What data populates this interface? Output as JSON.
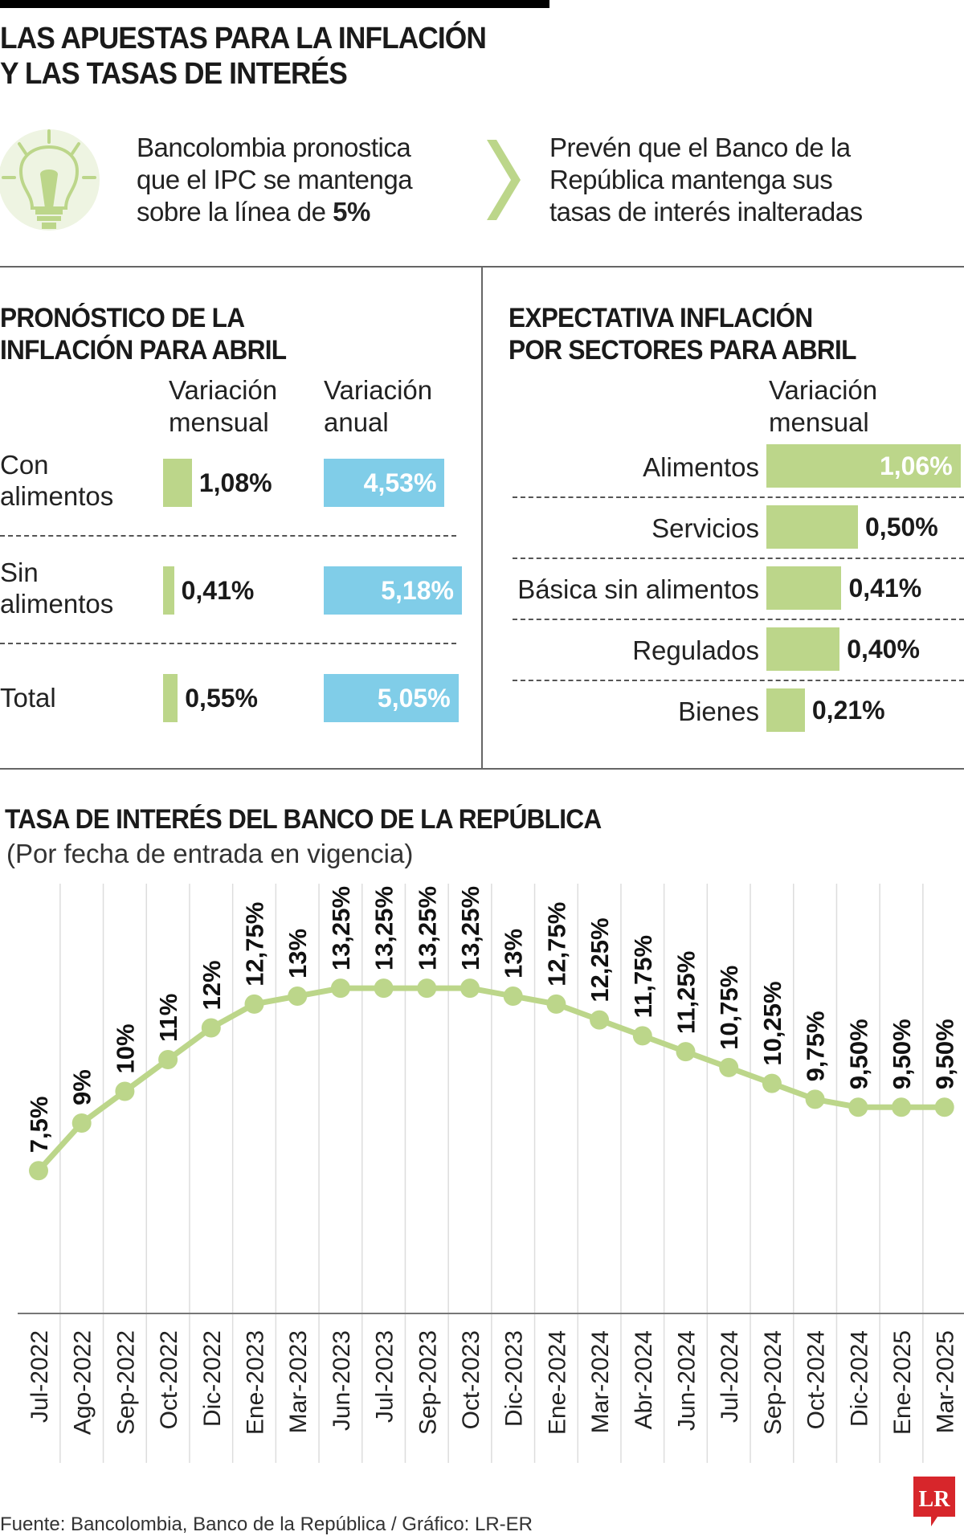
{
  "title": [
    "LAS APUESTAS PARA LA INFLACIÓN",
    "Y LAS TASAS DE INTERÉS"
  ],
  "intro": {
    "left_lines": [
      "Bancolombia pronostica",
      "que el IPC se mantenga",
      "sobre la línea de "
    ],
    "left_bold": "5%",
    "right_lines": [
      "Prevén que el Banco de la",
      "República mantenga sus",
      "tasas de interés inalteradas"
    ],
    "icon": "lightbulb-icon",
    "arrow_icon": "chevron-right-icon"
  },
  "forecast": {
    "title": [
      "PRONÓSTICO DE LA",
      "INFLACIÓN PARA ABRIL"
    ],
    "col_monthly": [
      "Variación",
      "mensual"
    ],
    "col_annual": [
      "Variación",
      "anual"
    ],
    "rows": [
      {
        "label": [
          "Con",
          "alimentos"
        ],
        "monthly": 1.08,
        "monthly_label": "1,08%",
        "annual": 4.53,
        "annual_label": "4,53%"
      },
      {
        "label": [
          "Sin",
          "alimentos"
        ],
        "monthly": 0.41,
        "monthly_label": "0,41%",
        "annual": 5.18,
        "annual_label": "5,18%"
      },
      {
        "label": [
          "Total"
        ],
        "monthly": 0.55,
        "monthly_label": "0,55%",
        "annual": 5.05,
        "annual_label": "5,05%"
      }
    ]
  },
  "sectors": {
    "title": [
      "EXPECTATIVA INFLACIÓN",
      "POR SECTORES PARA ABRIL"
    ],
    "col_monthly": [
      "Variación",
      "mensual"
    ],
    "rows": [
      {
        "label": "Alimentos",
        "value": 1.06,
        "value_label": "1,06%"
      },
      {
        "label": "Servicios",
        "value": 0.5,
        "value_label": "0,50%"
      },
      {
        "label": "Básica sin alimentos",
        "value": 0.41,
        "value_label": "0,41%"
      },
      {
        "label": "Regulados",
        "value": 0.4,
        "value_label": "0,40%"
      },
      {
        "label": "Bienes",
        "value": 0.21,
        "value_label": "0,21%"
      }
    ]
  },
  "colors": {
    "green": "#bcd68a",
    "blue": "#80cde8",
    "logo_red": "#d7262b"
  },
  "chart_data": {
    "type": "line",
    "title": "TASA DE INTERÉS DEL BANCO DE LA REPÚBLICA",
    "subtitle": "(Por fecha de entrada en vigencia)",
    "categories": [
      "Jul-2022",
      "Ago-2022",
      "Sep-2022",
      "Oct-2022",
      "Dic-2022",
      "Ene-2023",
      "Mar-2023",
      "Jun-2023",
      "Jul-2023",
      "Sep-2023",
      "Oct-2023",
      "Dic-2023",
      "Ene-2024",
      "Mar-2024",
      "Abr-2024",
      "Jun-2024",
      "Jul-2024",
      "Sep-2024",
      "Oct-2024",
      "Dic-2024",
      "Ene-2025",
      "Mar-2025"
    ],
    "values": [
      7.5,
      9,
      10,
      11,
      12,
      12.75,
      13,
      13.25,
      13.25,
      13.25,
      13.25,
      13,
      12.75,
      12.25,
      11.75,
      11.25,
      10.75,
      10.25,
      9.75,
      9.5,
      9.5,
      9.5
    ],
    "labels": [
      "7,5%",
      "9%",
      "10%",
      "11%",
      "12%",
      "12,75%",
      "13%",
      "13,25%",
      "13,25%",
      "13,25%",
      "13,25%",
      "13%",
      "12,75%",
      "12,25%",
      "11,75%",
      "11,25%",
      "10,75%",
      "10,25%",
      "9,75%",
      "9,50%",
      "9,50%",
      "9,50%"
    ],
    "ylim": [
      3,
      15
    ],
    "grid": "vertical",
    "color": "#bcd68a"
  },
  "footer": "Fuente: Bancolombia, Banco de la República / Gráfico: LR-ER",
  "logo": "LR"
}
